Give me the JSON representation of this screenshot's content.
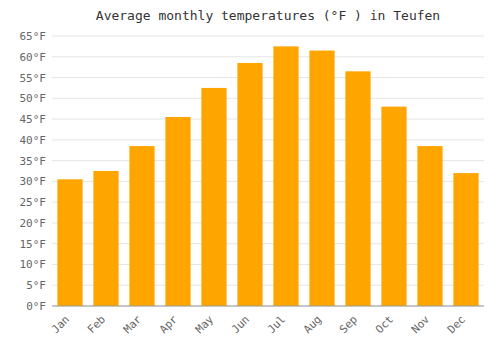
{
  "chart_data": {
    "type": "bar",
    "title": "Average monthly temperatures (°F ) in Teufen",
    "categories": [
      "Jan",
      "Feb",
      "Mar",
      "Apr",
      "May",
      "Jun",
      "Jul",
      "Aug",
      "Sep",
      "Oct",
      "Nov",
      "Dec"
    ],
    "values": [
      30.5,
      32.5,
      38.5,
      45.5,
      52.5,
      58.5,
      62.5,
      61.5,
      56.5,
      48.0,
      38.5,
      32.0
    ],
    "color": "#FFA500",
    "ylim": [
      0,
      65
    ],
    "yticks": [
      {
        "value": 0,
        "label": "0°F"
      },
      {
        "value": 5,
        "label": "5°F"
      },
      {
        "value": 10,
        "label": "10°F"
      },
      {
        "value": 15,
        "label": "15°F"
      },
      {
        "value": 20,
        "label": "20°F"
      },
      {
        "value": 25,
        "label": "25°F"
      },
      {
        "value": 30,
        "label": "30°F"
      },
      {
        "value": 35,
        "label": "35°F"
      },
      {
        "value": 40,
        "label": "40°F"
      },
      {
        "value": 45,
        "label": "45°F"
      },
      {
        "value": 50,
        "label": "50°F"
      },
      {
        "value": 55,
        "label": "55°F"
      },
      {
        "value": 60,
        "label": "60°F"
      },
      {
        "value": 65,
        "label": "65°F"
      }
    ],
    "grid": true
  }
}
